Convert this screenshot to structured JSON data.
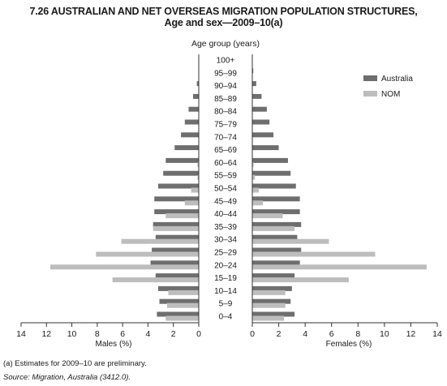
{
  "figure": {
    "number": "7.26",
    "title_line1": "7.26  AUSTRALIAN AND NET OVERSEAS MIGRATION POPULATION STRUCTURES,",
    "title_line2": "Age and sex—2009–10(a)",
    "footnote": "(a) Estimates for 2009–10 are preliminary.",
    "source": "Source: Migration, Australia (3412.0)."
  },
  "colors": {
    "australia": "#6e6e6e",
    "nom": "#bdbdbd",
    "axis": "#333333"
  },
  "chart_data": {
    "type": "bar",
    "orientation": "horizontal-population-pyramid",
    "title": "AUSTRALIAN AND NET OVERSEAS MIGRATION POPULATION STRUCTURES, Age and sex—2009–10(a)",
    "center_label": "Age group (years)",
    "xlabel_left": "Males (%)",
    "xlabel_right": "Females (%)",
    "x_ticks": [
      0,
      2,
      4,
      6,
      8,
      10,
      12,
      14
    ],
    "xlim": [
      0,
      14
    ],
    "categories": [
      "0–4",
      "5–9",
      "10–14",
      "15–19",
      "20–24",
      "25–29",
      "30–34",
      "35–39",
      "40–44",
      "45–49",
      "50–54",
      "55–59",
      "60–64",
      "65–69",
      "70–74",
      "75–79",
      "80–84",
      "85–89",
      "90–94",
      "95–99",
      "100+"
    ],
    "legend_position": "top-right",
    "series": [
      {
        "name": "Australia",
        "males": [
          3.3,
          3.1,
          3.2,
          3.4,
          3.8,
          3.7,
          3.4,
          3.6,
          3.5,
          3.5,
          3.2,
          2.8,
          2.6,
          1.9,
          1.4,
          1.1,
          0.8,
          0.45,
          0.15,
          0.03,
          0.0
        ],
        "females": [
          3.2,
          2.9,
          3.0,
          3.2,
          3.6,
          3.7,
          3.4,
          3.7,
          3.6,
          3.6,
          3.3,
          2.9,
          2.7,
          2.0,
          1.6,
          1.3,
          1.1,
          0.7,
          0.3,
          0.07,
          0.01
        ]
      },
      {
        "name": "NOM",
        "males": [
          2.6,
          2.5,
          2.4,
          6.8,
          11.7,
          8.1,
          6.1,
          3.6,
          2.6,
          1.1,
          0.6,
          0.1,
          0.1,
          0.0,
          0.0,
          0.0,
          0.0,
          0.0,
          0.0,
          0.0,
          0.0
        ],
        "females": [
          2.4,
          2.5,
          2.5,
          7.3,
          13.2,
          9.3,
          5.8,
          3.2,
          2.3,
          0.8,
          0.5,
          0.2,
          0.1,
          0.0,
          0.0,
          0.0,
          0.0,
          0.0,
          0.0,
          0.0,
          0.0
        ]
      }
    ]
  }
}
